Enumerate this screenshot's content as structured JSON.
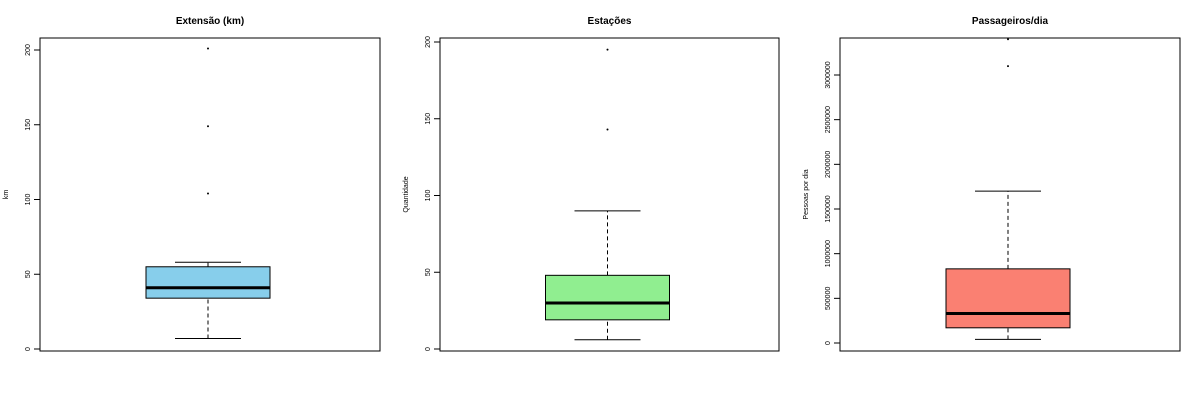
{
  "chart_data": [
    {
      "type": "boxplot",
      "title": "Extensão (km)",
      "xlabel": "",
      "ylabel": "km",
      "ylim": [
        0,
        205
      ],
      "yticks": [
        0,
        50,
        100,
        150,
        200
      ],
      "box": {
        "whisker_low": 7,
        "q1": 34,
        "median": 41,
        "q3": 55,
        "whisker_high": 58
      },
      "outliers": [
        104,
        149,
        201
      ],
      "fill_color": "#87CEEB"
    },
    {
      "type": "boxplot",
      "title": "Estações",
      "xlabel": "",
      "ylabel": "Quantidade",
      "ylim": [
        0,
        200
      ],
      "yticks": [
        0,
        50,
        100,
        150,
        200
      ],
      "box": {
        "whisker_low": 6,
        "q1": 19,
        "median": 30,
        "q3": 48,
        "whisker_high": 90
      },
      "outliers": [
        143,
        195
      ],
      "fill_color": "#90EE90"
    },
    {
      "type": "boxplot",
      "title": "Passageiros/dia",
      "xlabel": "",
      "ylabel": "Pessoas por dia",
      "ylim": [
        0,
        3300000
      ],
      "yticks": [
        0,
        500000,
        1000000,
        1500000,
        2000000,
        2500000,
        3000000
      ],
      "box": {
        "whisker_low": 40000,
        "q1": 170000,
        "median": 330000,
        "q3": 830000,
        "whisker_high": 1700000
      },
      "outliers": [
        3100000,
        3400000
      ],
      "fill_color": "#FA8072"
    }
  ]
}
